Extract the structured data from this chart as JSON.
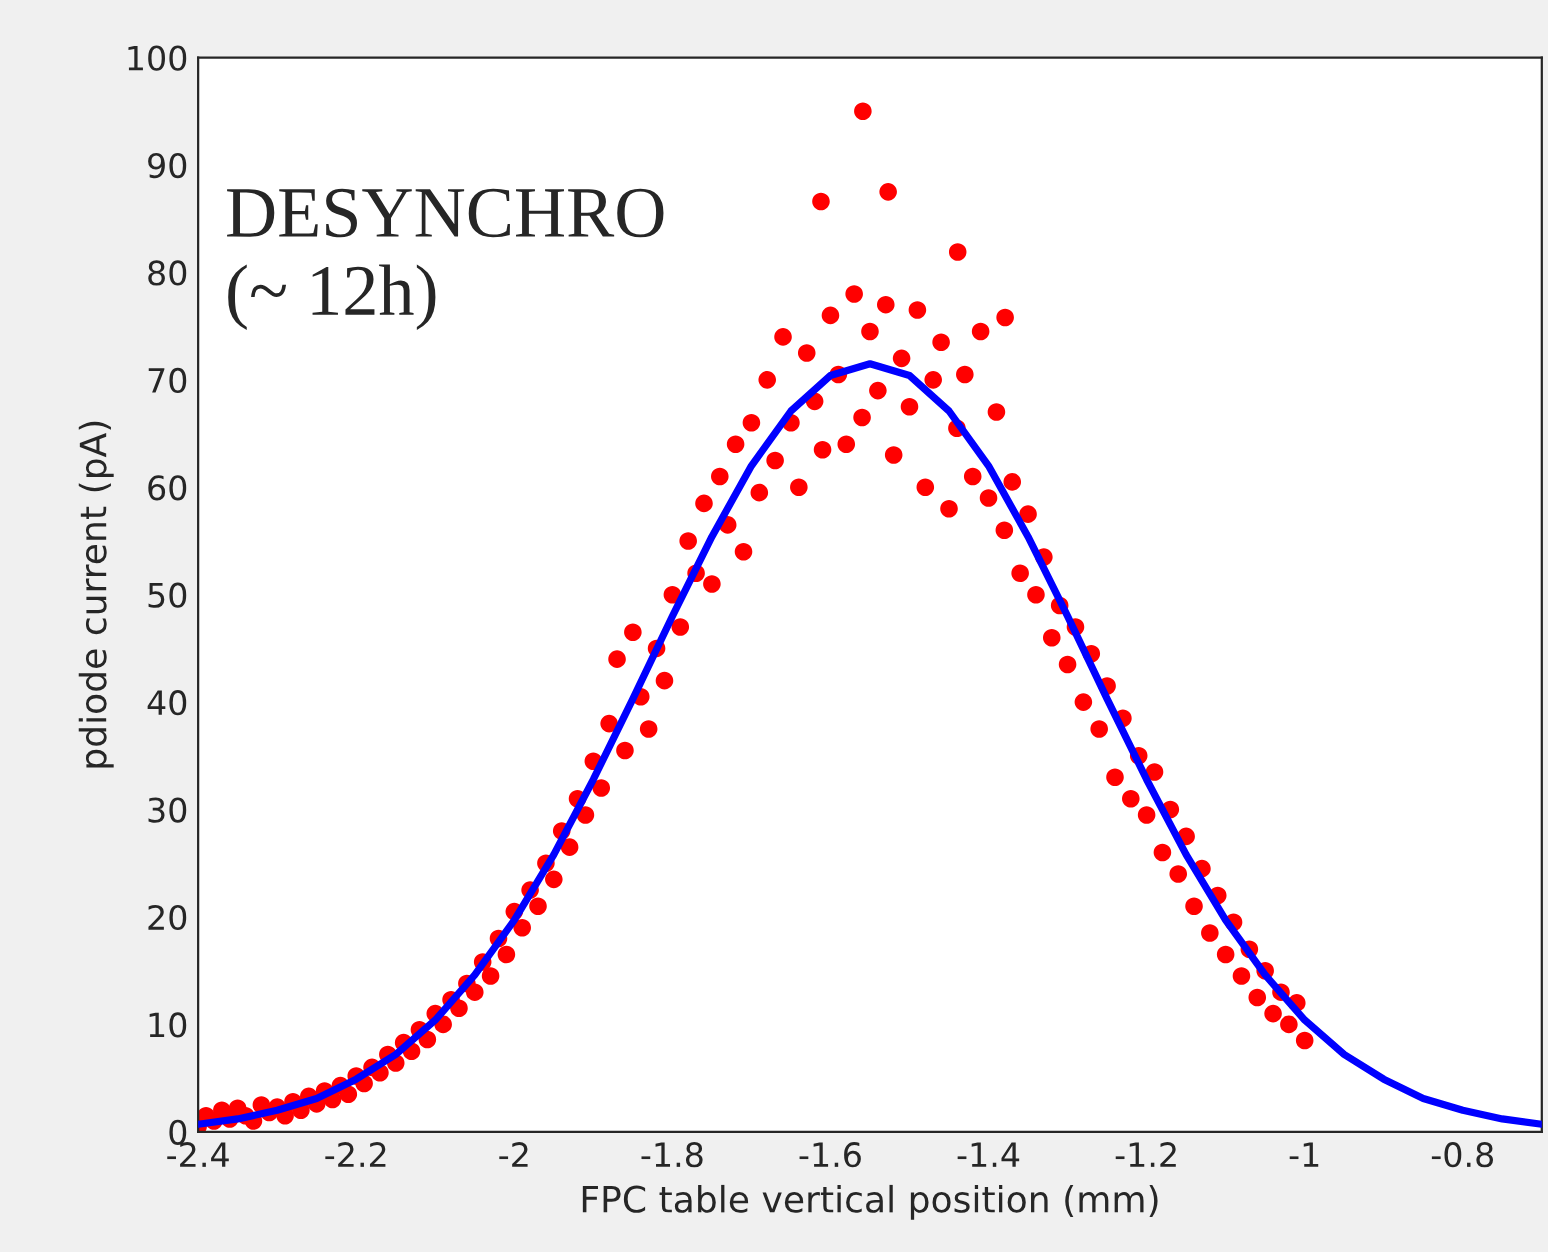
{
  "chart_data": {
    "type": "scatter",
    "xlabel": "FPC table vertical position (mm)",
    "ylabel": "pdiode current (pA)",
    "annotations": [
      "DESYNCHRO\n(~ 12h)"
    ],
    "xlim": [
      -2.4,
      -0.7
    ],
    "xticks": [
      -2.4,
      -2.2,
      -2,
      -1.8,
      -1.6,
      -1.4,
      -1.2,
      -1,
      -0.8
    ],
    "ylim": [
      0,
      100
    ],
    "yticks": [
      0,
      10,
      20,
      30,
      40,
      50,
      60,
      70,
      80,
      90,
      100
    ],
    "grid": false,
    "legend": false,
    "series": [
      {
        "color": "#ff0000",
        "marker": "circle",
        "x": [
          -2.4,
          -2.39,
          -2.38,
          -2.37,
          -2.36,
          -2.35,
          -2.34,
          -2.33,
          -2.32,
          -2.31,
          -2.3,
          -2.29,
          -2.28,
          -2.27,
          -2.26,
          -2.25,
          -2.24,
          -2.23,
          -2.22,
          -2.21,
          -2.2,
          -2.19,
          -2.18,
          -2.17,
          -2.16,
          -2.15,
          -2.14,
          -2.13,
          -2.12,
          -2.11,
          -2.1,
          -2.09,
          -2.08,
          -2.07,
          -2.06,
          -2.05,
          -2.04,
          -2.03,
          -2.02,
          -2.01,
          -2.0,
          -1.99,
          -1.98,
          -1.97,
          -1.96,
          -1.95,
          -1.94,
          -1.93,
          -1.92,
          -1.91,
          -1.9,
          -1.89,
          -1.88,
          -1.87,
          -1.86,
          -1.85,
          -1.84,
          -1.83,
          -1.82,
          -1.81,
          -1.8,
          -1.79,
          -1.78,
          -1.77,
          -1.76,
          -1.75,
          -1.74,
          -1.73,
          -1.72,
          -1.71,
          -1.7,
          -1.69,
          -1.68,
          -1.67,
          -1.66,
          -1.65,
          -1.64,
          -1.63,
          -1.62,
          -1.612,
          -1.61,
          -1.6,
          -1.59,
          -1.58,
          -1.57,
          -1.559,
          -1.56,
          -1.55,
          -1.54,
          -1.53,
          -1.527,
          -1.52,
          -1.51,
          -1.5,
          -1.49,
          -1.48,
          -1.47,
          -1.46,
          -1.45,
          -1.439,
          -1.44,
          -1.43,
          -1.42,
          -1.41,
          -1.4,
          -1.39,
          -1.379,
          -1.38,
          -1.37,
          -1.36,
          -1.35,
          -1.34,
          -1.33,
          -1.32,
          -1.31,
          -1.3,
          -1.29,
          -1.28,
          -1.27,
          -1.26,
          -1.25,
          -1.24,
          -1.23,
          -1.22,
          -1.21,
          -1.2,
          -1.19,
          -1.18,
          -1.17,
          -1.16,
          -1.15,
          -1.14,
          -1.13,
          -1.12,
          -1.11,
          -1.1,
          -1.09,
          -1.08,
          -1.07,
          -1.06,
          -1.05,
          -1.04,
          -1.03,
          -1.02,
          -1.01,
          -1.0
        ],
        "values": [
          0.5,
          1.5,
          1.0,
          2.0,
          1.2,
          2.2,
          1.5,
          1.0,
          2.5,
          1.8,
          2.3,
          1.5,
          2.8,
          2.0,
          3.3,
          2.6,
          3.8,
          3.0,
          4.3,
          3.5,
          5.2,
          4.5,
          6.0,
          5.5,
          7.2,
          6.4,
          8.3,
          7.5,
          9.5,
          8.6,
          11.0,
          10.0,
          12.3,
          11.5,
          13.8,
          13.0,
          15.8,
          14.5,
          18.0,
          16.5,
          20.5,
          19.0,
          22.5,
          21.0,
          25.0,
          23.5,
          28.0,
          26.5,
          31.0,
          29.5,
          34.5,
          32.0,
          38.0,
          44.0,
          35.5,
          46.5,
          40.5,
          37.5,
          45.0,
          42.0,
          50.0,
          47.0,
          55.0,
          52.0,
          58.5,
          51.0,
          61.0,
          56.5,
          64.0,
          54.0,
          66.0,
          59.5,
          70.0,
          62.5,
          74.0,
          66.0,
          60.0,
          72.5,
          68.0,
          86.6,
          63.5,
          76.0,
          70.5,
          64.0,
          78.0,
          95.0,
          66.5,
          74.5,
          69.0,
          77.0,
          87.5,
          63.0,
          72.0,
          67.5,
          76.5,
          60.0,
          70.0,
          73.5,
          58.0,
          81.9,
          65.5,
          70.5,
          61.0,
          74.5,
          59.0,
          67.0,
          75.8,
          56.0,
          60.5,
          52.0,
          57.5,
          50.0,
          53.5,
          46.0,
          49.0,
          43.5,
          47.0,
          40.0,
          44.5,
          37.5,
          41.5,
          33.0,
          38.5,
          31.0,
          35.0,
          29.5,
          33.5,
          26.0,
          30.0,
          24.0,
          27.5,
          21.0,
          24.5,
          18.5,
          22.0,
          16.5,
          19.5,
          14.5,
          17.0,
          12.5,
          15.0,
          11.0,
          13.0,
          10.0,
          12.0,
          8.5
        ]
      },
      {
        "type": "line",
        "color": "#0000ff",
        "line_style": "solid",
        "x": [
          -2.4,
          -2.35,
          -2.3,
          -2.25,
          -2.2,
          -2.15,
          -2.1,
          -2.05,
          -2.0,
          -1.95,
          -1.9,
          -1.85,
          -1.8,
          -1.75,
          -1.7,
          -1.65,
          -1.6,
          -1.55,
          -1.5,
          -1.45,
          -1.4,
          -1.35,
          -1.3,
          -1.25,
          -1.2,
          -1.15,
          -1.1,
          -1.05,
          -1.0,
          -0.95,
          -0.9,
          -0.85,
          -0.8,
          -0.75,
          -0.7
        ],
        "values": [
          0.7,
          1.2,
          2.0,
          3.1,
          4.9,
          7.2,
          10.4,
          14.6,
          19.7,
          25.8,
          32.8,
          40.3,
          48.0,
          55.4,
          62.0,
          67.1,
          70.4,
          71.5,
          70.4,
          67.1,
          62.0,
          55.4,
          48.0,
          40.3,
          32.8,
          25.8,
          19.7,
          14.6,
          10.4,
          7.2,
          4.9,
          3.1,
          2.0,
          1.2,
          0.7
        ]
      }
    ]
  }
}
